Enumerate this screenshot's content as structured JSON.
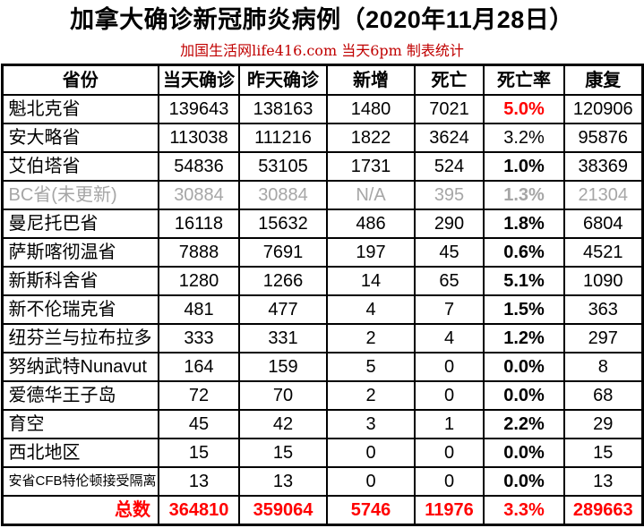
{
  "page": {
    "title": "加拿大确诊新冠肺炎病例（2020年11月28日）",
    "subtitle": "加国生活网life416.com 当天6pm 制表统计"
  },
  "colors": {
    "title_black": "#000000",
    "subtitle_red": "#C00000",
    "highlight_red": "#FF0000",
    "muted_gray": "#A6A6A6",
    "border_black": "#000000"
  },
  "table": {
    "headers": [
      "省份",
      "当天确诊",
      "昨天确诊",
      "新增",
      "死亡",
      "死亡率",
      "康复"
    ],
    "rows": [
      {
        "province": "魁北克省",
        "today": "139643",
        "yesterday": "138163",
        "new_cases": "1480",
        "deaths": "7021",
        "rate": "5.0%",
        "recovered": "120906",
        "variant": "normal",
        "rate_bold": true,
        "rate_red": true,
        "small_name": false
      },
      {
        "province": "安大略省",
        "today": "113038",
        "yesterday": "111216",
        "new_cases": "1822",
        "deaths": "3624",
        "rate": "3.2%",
        "recovered": "95876",
        "variant": "normal",
        "rate_bold": false,
        "rate_red": false,
        "small_name": false
      },
      {
        "province": "艾伯塔省",
        "today": "54836",
        "yesterday": "53105",
        "new_cases": "1731",
        "deaths": "524",
        "rate": "1.0%",
        "recovered": "38369",
        "variant": "normal",
        "rate_bold": true,
        "rate_red": false,
        "small_name": false
      },
      {
        "province": "BC省(未更新)",
        "today": "30884",
        "yesterday": "30884",
        "new_cases": "N/A",
        "deaths": "395",
        "rate": "1.3%",
        "recovered": "21304",
        "variant": "muted",
        "rate_bold": true,
        "rate_red": false,
        "small_name": false
      },
      {
        "province": "曼尼托巴省",
        "today": "16118",
        "yesterday": "15632",
        "new_cases": "486",
        "deaths": "290",
        "rate": "1.8%",
        "recovered": "6804",
        "variant": "normal",
        "rate_bold": true,
        "rate_red": false,
        "small_name": false
      },
      {
        "province": "萨斯喀彻温省",
        "today": "7888",
        "yesterday": "7691",
        "new_cases": "197",
        "deaths": "45",
        "rate": "0.6%",
        "recovered": "4521",
        "variant": "normal",
        "rate_bold": true,
        "rate_red": false,
        "small_name": false
      },
      {
        "province": "新斯科舍省",
        "today": "1280",
        "yesterday": "1266",
        "new_cases": "14",
        "deaths": "65",
        "rate": "5.1%",
        "recovered": "1090",
        "variant": "normal",
        "rate_bold": true,
        "rate_red": false,
        "small_name": false
      },
      {
        "province": "新不伦瑞克省",
        "today": "481",
        "yesterday": "477",
        "new_cases": "4",
        "deaths": "7",
        "rate": "1.5%",
        "recovered": "363",
        "variant": "normal",
        "rate_bold": true,
        "rate_red": false,
        "small_name": false
      },
      {
        "province": "纽芬兰与拉布拉多",
        "today": "333",
        "yesterday": "331",
        "new_cases": "2",
        "deaths": "4",
        "rate": "1.2%",
        "recovered": "297",
        "variant": "normal",
        "rate_bold": true,
        "rate_red": false,
        "small_name": false
      },
      {
        "province": "努纳武特Nunavut",
        "today": "164",
        "yesterday": "159",
        "new_cases": "5",
        "deaths": "0",
        "rate": "0.0%",
        "recovered": "8",
        "variant": "normal",
        "rate_bold": true,
        "rate_red": false,
        "small_name": false
      },
      {
        "province": "爱德华王子岛",
        "today": "72",
        "yesterday": "70",
        "new_cases": "2",
        "deaths": "0",
        "rate": "0.0%",
        "recovered": "68",
        "variant": "normal",
        "rate_bold": true,
        "rate_red": false,
        "small_name": false
      },
      {
        "province": "育空",
        "today": "45",
        "yesterday": "42",
        "new_cases": "3",
        "deaths": "1",
        "rate": "2.2%",
        "recovered": "29",
        "variant": "normal",
        "rate_bold": true,
        "rate_red": false,
        "small_name": false
      },
      {
        "province": "西北地区",
        "today": "15",
        "yesterday": "15",
        "new_cases": "0",
        "deaths": "0",
        "rate": "0.0%",
        "recovered": "15",
        "variant": "normal",
        "rate_bold": true,
        "rate_red": false,
        "small_name": false
      },
      {
        "province": "安省CFB特伦顿接受隔离",
        "today": "13",
        "yesterday": "13",
        "new_cases": "0",
        "deaths": "0",
        "rate": "0.0%",
        "recovered": "13",
        "variant": "normal",
        "rate_bold": true,
        "rate_red": false,
        "small_name": true
      },
      {
        "province": "总数",
        "today": "364810",
        "yesterday": "359064",
        "new_cases": "5746",
        "deaths": "11976",
        "rate": "3.3%",
        "recovered": "289663",
        "variant": "total",
        "rate_bold": true,
        "rate_red": true,
        "small_name": false
      }
    ]
  },
  "chart_data": {
    "type": "table",
    "title": "加拿大确诊新冠肺炎病例（2020年11月28日）",
    "subtitle": "加国生活网life416.com 当天6pm 制表统计",
    "columns": [
      "省份",
      "当天确诊",
      "昨天确诊",
      "新增",
      "死亡",
      "死亡率",
      "康复"
    ],
    "rows": [
      [
        "魁北克省",
        139643,
        138163,
        1480,
        7021,
        "5.0%",
        120906
      ],
      [
        "安大略省",
        113038,
        111216,
        1822,
        3624,
        "3.2%",
        95876
      ],
      [
        "艾伯塔省",
        54836,
        53105,
        1731,
        524,
        "1.0%",
        38369
      ],
      [
        "BC省(未更新)",
        30884,
        30884,
        "N/A",
        395,
        "1.3%",
        21304
      ],
      [
        "曼尼托巴省",
        16118,
        15632,
        486,
        290,
        "1.8%",
        6804
      ],
      [
        "萨斯喀彻温省",
        7888,
        7691,
        197,
        45,
        "0.6%",
        4521
      ],
      [
        "新斯科舍省",
        1280,
        1266,
        14,
        65,
        "5.1%",
        1090
      ],
      [
        "新不伦瑞克省",
        481,
        477,
        4,
        7,
        "1.5%",
        363
      ],
      [
        "纽芬兰与拉布拉多",
        333,
        331,
        2,
        4,
        "1.2%",
        297
      ],
      [
        "努纳武特Nunavut",
        164,
        159,
        5,
        0,
        "0.0%",
        8
      ],
      [
        "爱德华王子岛",
        72,
        70,
        2,
        0,
        "0.0%",
        68
      ],
      [
        "育空",
        45,
        42,
        3,
        1,
        "2.2%",
        29
      ],
      [
        "西北地区",
        15,
        15,
        0,
        0,
        "0.0%",
        15
      ],
      [
        "安省CFB特伦顿接受隔离",
        13,
        13,
        0,
        0,
        "0.0%",
        13
      ],
      [
        "总数",
        364810,
        359064,
        5746,
        11976,
        "3.3%",
        289663
      ]
    ]
  }
}
